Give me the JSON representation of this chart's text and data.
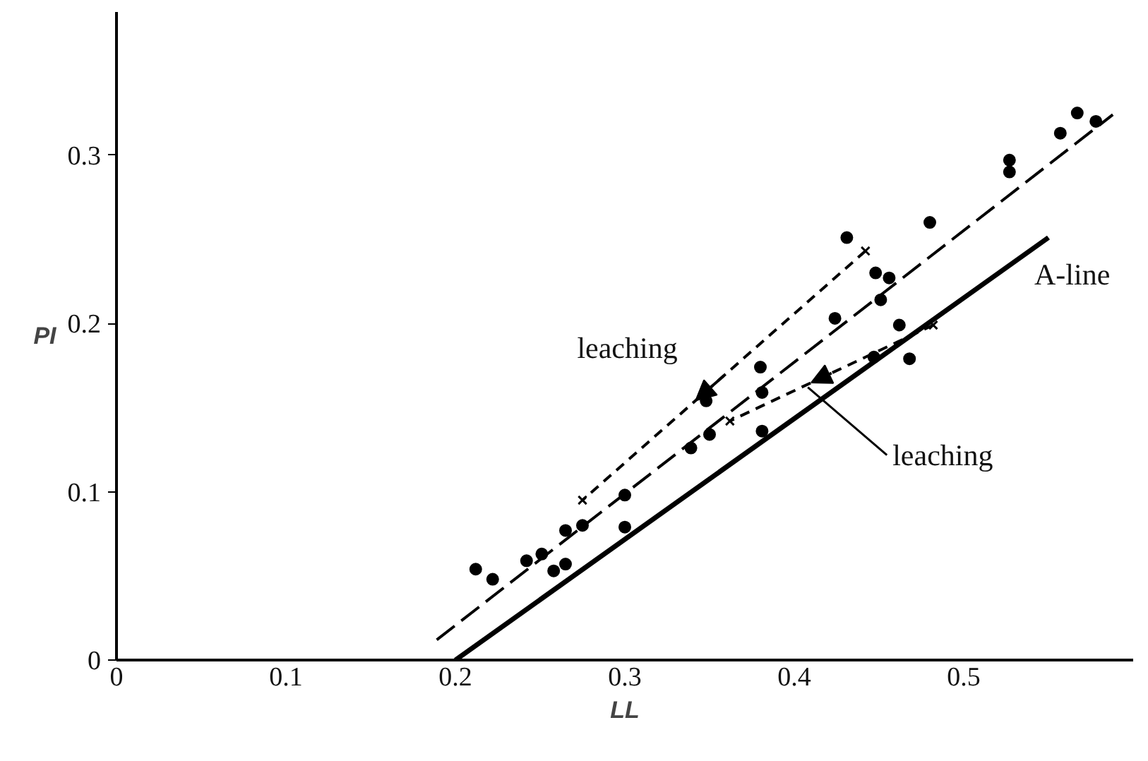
{
  "chart_data": {
    "type": "scatter",
    "xlabel": "LL",
    "ylabel": "PI",
    "xlim": [
      0,
      0.6
    ],
    "ylim": [
      0,
      0.385
    ],
    "xticks": [
      0,
      0.1,
      0.2,
      0.3,
      0.4,
      0.5
    ],
    "yticks": [
      0,
      0.1,
      0.2,
      0.3
    ],
    "grid": false,
    "series": [
      {
        "marker": "circle",
        "color": "#000000",
        "x": [
          0.212,
          0.222,
          0.242,
          0.251,
          0.258,
          0.265,
          0.265,
          0.275,
          0.3,
          0.3,
          0.339,
          0.35,
          0.348,
          0.38,
          0.381,
          0.381,
          0.424,
          0.431,
          0.448,
          0.456,
          0.451,
          0.48,
          0.462,
          0.468,
          0.447,
          0.527,
          0.527,
          0.557,
          0.567,
          0.578
        ],
        "values": [
          0.054,
          0.048,
          0.059,
          0.063,
          0.053,
          0.057,
          0.077,
          0.08,
          0.098,
          0.079,
          0.126,
          0.134,
          0.154,
          0.174,
          0.159,
          0.136,
          0.203,
          0.251,
          0.23,
          0.227,
          0.214,
          0.26,
          0.199,
          0.179,
          0.18,
          0.297,
          0.29,
          0.313,
          0.325,
          0.32
        ]
      },
      {
        "marker": "cross",
        "color": "#000000",
        "x": [
          0.275,
          0.442,
          0.362,
          0.482
        ],
        "values": [
          0.095,
          0.243,
          0.142,
          0.199
        ]
      },
      {
        "type": "line",
        "marker": "none",
        "line_style": "solid",
        "color": "#000000",
        "name": "A-line",
        "x": [
          0.2,
          0.55
        ],
        "values": [
          0,
          0.251
        ]
      },
      {
        "type": "line",
        "marker": "none",
        "line_style": "dashed",
        "color": "#000000",
        "x": [
          0.189,
          0.588
        ],
        "values": [
          0.012,
          0.324
        ]
      },
      {
        "type": "line",
        "marker": "none",
        "line_style": "dotted",
        "color": "#000000",
        "x": [
          0.442,
          0.275
        ],
        "values": [
          0.243,
          0.095
        ]
      },
      {
        "type": "line",
        "marker": "none",
        "line_style": "dotted",
        "color": "#000000",
        "x": [
          0.482,
          0.362
        ],
        "values": [
          0.199,
          0.142
        ]
      }
    ],
    "annotations": [
      {
        "text": "leaching",
        "x": 0.376,
        "y": 0.182
      },
      {
        "text": "leaching",
        "x": 0.408,
        "y": 0.162
      }
    ]
  }
}
